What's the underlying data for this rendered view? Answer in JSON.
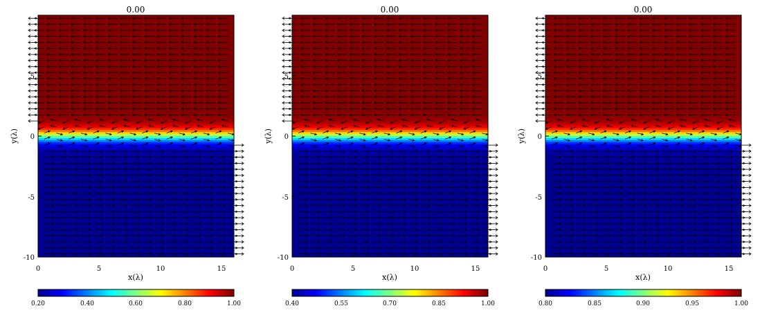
{
  "chart_data": [
    {
      "type": "heatmap",
      "title": "0.00",
      "xlabel": "x(λ)",
      "ylabel": "y(λ)",
      "xlim": [
        0,
        16
      ],
      "ylim": [
        -10,
        10
      ],
      "xticks": [
        "0",
        "5",
        "10",
        "15"
      ],
      "yticks": [
        "-10",
        "-5",
        "0",
        "5"
      ],
      "field": {
        "top_value": 1.0,
        "bottom_value": 0.2,
        "transition_center_y": 0.0,
        "transition_halfwidth": 0.8
      },
      "colorbar": {
        "min": 0.2,
        "max": 1.0,
        "ticks": [
          "0.20",
          "0.40",
          "0.60",
          "0.80",
          "1.00"
        ]
      },
      "vectors": {
        "upper_direction": "left",
        "lower_direction": "right",
        "interface_y": 0.3
      }
    },
    {
      "type": "heatmap",
      "title": "0.00",
      "xlabel": "x(λ)",
      "ylabel": "y(λ)",
      "xlim": [
        0,
        16
      ],
      "ylim": [
        -10,
        10
      ],
      "xticks": [
        "0",
        "5",
        "10",
        "15"
      ],
      "yticks": [
        "-10",
        "-5",
        "0",
        "5"
      ],
      "field": {
        "top_value": 1.0,
        "bottom_value": 0.4,
        "transition_center_y": 0.0,
        "transition_halfwidth": 0.8
      },
      "colorbar": {
        "min": 0.4,
        "max": 1.0,
        "ticks": [
          "0.40",
          "0.55",
          "0.70",
          "0.85",
          "1.00"
        ]
      },
      "vectors": {
        "upper_direction": "left",
        "lower_direction": "right",
        "interface_y": 0.3
      }
    },
    {
      "type": "heatmap",
      "title": "0.00",
      "xlabel": "x(λ)",
      "ylabel": "y(λ)",
      "xlim": [
        0,
        16
      ],
      "ylim": [
        -10,
        10
      ],
      "xticks": [
        "0",
        "5",
        "10",
        "15"
      ],
      "yticks": [
        "-10",
        "-5",
        "0",
        "5"
      ],
      "field": {
        "top_value": 1.0,
        "bottom_value": 0.8,
        "transition_center_y": 0.0,
        "transition_halfwidth": 0.8
      },
      "colorbar": {
        "min": 0.8,
        "max": 1.0,
        "ticks": [
          "0.80",
          "0.85",
          "0.90",
          "0.95",
          "1.00"
        ]
      },
      "vectors": {
        "upper_direction": "left",
        "lower_direction": "right",
        "interface_y": 0.3
      }
    }
  ]
}
